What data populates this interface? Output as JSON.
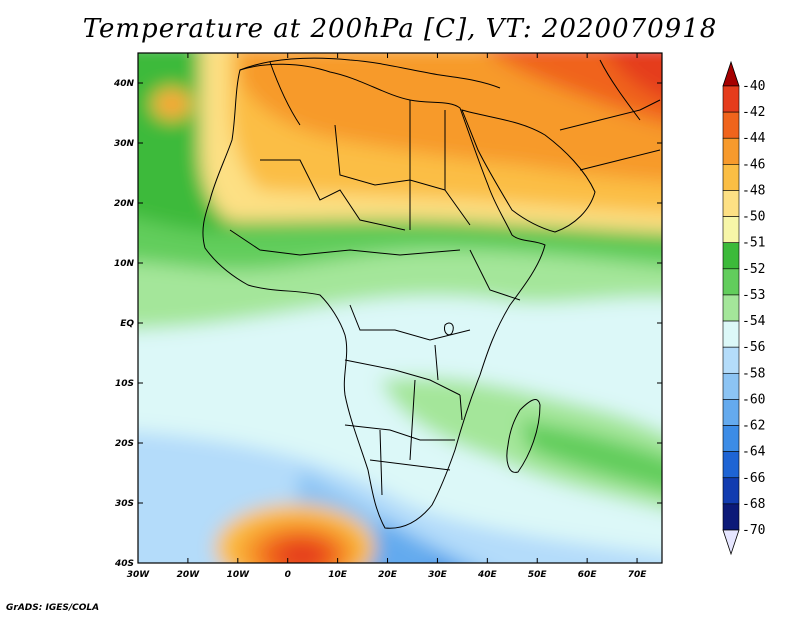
{
  "title": "Temperature at 200hPa [C], VT: 2020070918",
  "credit": "GrADS: IGES/COLA",
  "map": {
    "x_ticks": [
      "30W",
      "20W",
      "10W",
      "0",
      "10E",
      "20E",
      "30E",
      "40E",
      "50E",
      "60E",
      "70E"
    ],
    "y_ticks": [
      "40N",
      "30N",
      "20N",
      "10N",
      "EQ",
      "10S",
      "20S",
      "30S",
      "40S"
    ],
    "lon_range": [
      -30,
      75
    ],
    "lat_range": [
      -40,
      45
    ]
  },
  "colorbar": {
    "levels": [
      "-40",
      "-42",
      "-44",
      "-46",
      "-48",
      "-50",
      "-51",
      "-52",
      "-53",
      "-54",
      "-56",
      "-58",
      "-60",
      "-62",
      "-64",
      "-66",
      "-68",
      "-70"
    ],
    "colors": [
      "#a50000",
      "#e53c1c",
      "#f0641c",
      "#f79a2c",
      "#fbbe44",
      "#fde084",
      "#f7f6a8",
      "#3cba3a",
      "#62cd5c",
      "#a4e69a",
      "#dcf8f8",
      "#b4dcfa",
      "#8cc4f4",
      "#64aaee",
      "#3c8ce6",
      "#1e64d4",
      "#123cb0",
      "#0c1a78",
      "#e6e6ff"
    ]
  }
}
